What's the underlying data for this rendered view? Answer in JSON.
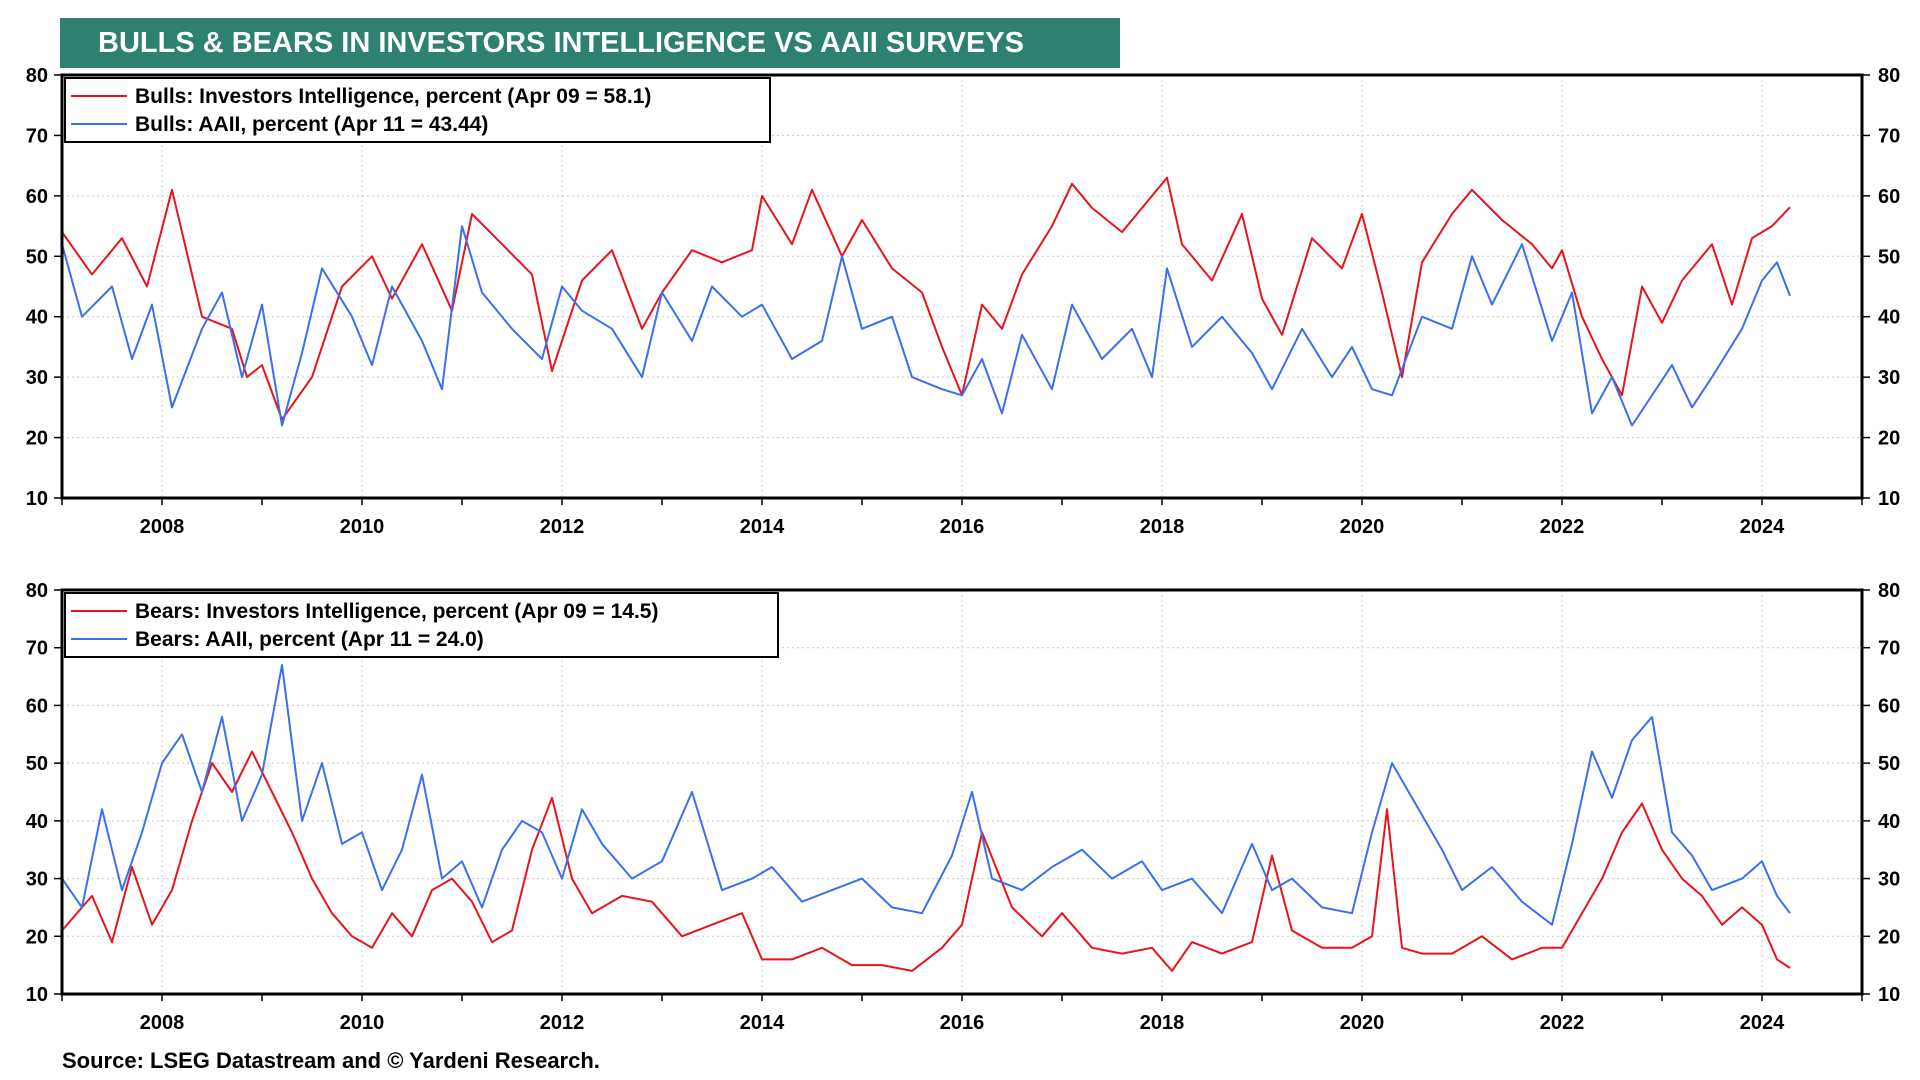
{
  "title": "BULLS & BEARS IN INVESTORS INTELLIGENCE VS AAII SURVEYS",
  "source": "Source: LSEG Datastream and © Yardeni Research.",
  "colors": {
    "banner": "#2e8070",
    "ii": "#e8141c",
    "aaii": "#3a6ff0"
  },
  "chart_data": [
    {
      "type": "line",
      "ylim": [
        10,
        80
      ],
      "yticks": [
        10,
        20,
        30,
        40,
        50,
        60,
        70,
        80
      ],
      "xlim": [
        2007.0,
        2025.0
      ],
      "xticks": [
        "2008",
        "2010",
        "2012",
        "2014",
        "2016",
        "2018",
        "2020",
        "2022",
        "2024"
      ],
      "grid": true,
      "legend_position": "top-left",
      "series": [
        {
          "name": "Bulls: Investors Intelligence, percent (Apr 09 = 58.1)",
          "color": "#e8141c",
          "x": [
            2007.0,
            2007.3,
            2007.6,
            2007.85,
            2008.1,
            2008.4,
            2008.7,
            2008.85,
            2009.0,
            2009.2,
            2009.5,
            2009.8,
            2010.1,
            2010.3,
            2010.6,
            2010.9,
            2011.1,
            2011.4,
            2011.7,
            2011.9,
            2012.2,
            2012.5,
            2012.8,
            2013.0,
            2013.3,
            2013.6,
            2013.9,
            2014.0,
            2014.3,
            2014.5,
            2014.8,
            2015.0,
            2015.3,
            2015.6,
            2015.8,
            2016.0,
            2016.2,
            2016.4,
            2016.6,
            2016.9,
            2017.1,
            2017.3,
            2017.6,
            2017.9,
            2018.05,
            2018.2,
            2018.5,
            2018.8,
            2019.0,
            2019.2,
            2019.5,
            2019.8,
            2020.0,
            2020.2,
            2020.4,
            2020.6,
            2020.9,
            2021.1,
            2021.4,
            2021.7,
            2021.9,
            2022.0,
            2022.2,
            2022.4,
            2022.6,
            2022.8,
            2023.0,
            2023.2,
            2023.5,
            2023.7,
            2023.9,
            2024.1,
            2024.28
          ],
          "y": [
            54,
            47,
            53,
            45,
            61,
            40,
            38,
            30,
            32,
            23,
            30,
            45,
            50,
            43,
            52,
            41,
            57,
            52,
            47,
            31,
            46,
            51,
            38,
            44,
            51,
            49,
            51,
            60,
            52,
            61,
            50,
            56,
            48,
            44,
            35,
            27,
            42,
            38,
            47,
            55,
            62,
            58,
            54,
            60,
            63,
            52,
            46,
            57,
            43,
            37,
            53,
            48,
            57,
            44,
            30,
            49,
            57,
            61,
            56,
            52,
            48,
            51,
            40,
            33,
            27,
            45,
            39,
            46,
            52,
            42,
            53,
            55,
            58.1
          ]
        },
        {
          "name": "Bulls: AAII, percent (Apr 11 = 43.44)",
          "color": "#3a6ff0",
          "x": [
            2007.0,
            2007.2,
            2007.5,
            2007.7,
            2007.9,
            2008.1,
            2008.4,
            2008.6,
            2008.8,
            2009.0,
            2009.2,
            2009.4,
            2009.6,
            2009.9,
            2010.1,
            2010.3,
            2010.6,
            2010.8,
            2011.0,
            2011.2,
            2011.5,
            2011.8,
            2012.0,
            2012.2,
            2012.5,
            2012.8,
            2013.0,
            2013.3,
            2013.5,
            2013.8,
            2014.0,
            2014.3,
            2014.6,
            2014.8,
            2015.0,
            2015.3,
            2015.5,
            2015.8,
            2016.0,
            2016.2,
            2016.4,
            2016.6,
            2016.9,
            2017.1,
            2017.4,
            2017.7,
            2017.9,
            2018.05,
            2018.3,
            2018.6,
            2018.9,
            2019.1,
            2019.4,
            2019.7,
            2019.9,
            2020.1,
            2020.3,
            2020.6,
            2020.9,
            2021.1,
            2021.3,
            2021.6,
            2021.9,
            2022.1,
            2022.3,
            2022.5,
            2022.7,
            2022.9,
            2023.1,
            2023.3,
            2023.5,
            2023.8,
            2024.0,
            2024.15,
            2024.28
          ],
          "y": [
            52,
            40,
            45,
            33,
            42,
            25,
            38,
            44,
            30,
            42,
            22,
            34,
            48,
            40,
            32,
            45,
            36,
            28,
            55,
            44,
            38,
            33,
            45,
            41,
            38,
            30,
            44,
            36,
            45,
            40,
            42,
            33,
            36,
            50,
            38,
            40,
            30,
            28,
            27,
            33,
            24,
            37,
            28,
            42,
            33,
            38,
            30,
            48,
            35,
            40,
            34,
            28,
            38,
            30,
            35,
            28,
            27,
            40,
            38,
            50,
            42,
            52,
            36,
            44,
            24,
            30,
            22,
            27,
            32,
            25,
            30,
            38,
            46,
            49,
            43.44
          ]
        }
      ]
    },
    {
      "type": "line",
      "ylim": [
        10,
        80
      ],
      "yticks": [
        10,
        20,
        30,
        40,
        50,
        60,
        70,
        80
      ],
      "xlim": [
        2007.0,
        2025.0
      ],
      "xticks": [
        "2008",
        "2010",
        "2012",
        "2014",
        "2016",
        "2018",
        "2020",
        "2022",
        "2024"
      ],
      "grid": true,
      "legend_position": "top-left",
      "series": [
        {
          "name": "Bears: Investors Intelligence, percent (Apr 09 = 14.5)",
          "color": "#e8141c",
          "x": [
            2007.0,
            2007.3,
            2007.5,
            2007.7,
            2007.9,
            2008.1,
            2008.3,
            2008.5,
            2008.7,
            2008.9,
            2009.1,
            2009.3,
            2009.5,
            2009.7,
            2009.9,
            2010.1,
            2010.3,
            2010.5,
            2010.7,
            2010.9,
            2011.1,
            2011.3,
            2011.5,
            2011.7,
            2011.9,
            2012.1,
            2012.3,
            2012.6,
            2012.9,
            2013.2,
            2013.5,
            2013.8,
            2014.0,
            2014.3,
            2014.6,
            2014.9,
            2015.2,
            2015.5,
            2015.8,
            2016.0,
            2016.2,
            2016.5,
            2016.8,
            2017.0,
            2017.3,
            2017.6,
            2017.9,
            2018.1,
            2018.3,
            2018.6,
            2018.9,
            2019.1,
            2019.3,
            2019.6,
            2019.9,
            2020.1,
            2020.25,
            2020.4,
            2020.6,
            2020.9,
            2021.2,
            2021.5,
            2021.8,
            2022.0,
            2022.2,
            2022.4,
            2022.6,
            2022.8,
            2023.0,
            2023.2,
            2023.4,
            2023.6,
            2023.8,
            2024.0,
            2024.15,
            2024.28
          ],
          "y": [
            21,
            27,
            19,
            32,
            22,
            28,
            40,
            50,
            45,
            52,
            45,
            38,
            30,
            24,
            20,
            18,
            24,
            20,
            28,
            30,
            26,
            19,
            21,
            35,
            44,
            30,
            24,
            27,
            26,
            20,
            22,
            24,
            16,
            16,
            18,
            15,
            15,
            14,
            18,
            22,
            38,
            25,
            20,
            24,
            18,
            17,
            18,
            14,
            19,
            17,
            19,
            34,
            21,
            18,
            18,
            20,
            42,
            18,
            17,
            17,
            20,
            16,
            18,
            18,
            24,
            30,
            38,
            43,
            35,
            30,
            27,
            22,
            25,
            22,
            16,
            14.5
          ]
        },
        {
          "name": "Bears: AAII, percent (Apr 11 = 24.0)",
          "color": "#3a6ff0",
          "x": [
            2007.0,
            2007.2,
            2007.4,
            2007.6,
            2007.8,
            2008.0,
            2008.2,
            2008.4,
            2008.6,
            2008.8,
            2009.0,
            2009.2,
            2009.4,
            2009.6,
            2009.8,
            2010.0,
            2010.2,
            2010.4,
            2010.6,
            2010.8,
            2011.0,
            2011.2,
            2011.4,
            2011.6,
            2011.8,
            2012.0,
            2012.2,
            2012.4,
            2012.7,
            2013.0,
            2013.3,
            2013.6,
            2013.9,
            2014.1,
            2014.4,
            2014.7,
            2015.0,
            2015.3,
            2015.6,
            2015.9,
            2016.1,
            2016.3,
            2016.6,
            2016.9,
            2017.2,
            2017.5,
            2017.8,
            2018.0,
            2018.3,
            2018.6,
            2018.9,
            2019.1,
            2019.3,
            2019.6,
            2019.9,
            2020.1,
            2020.3,
            2020.5,
            2020.8,
            2021.0,
            2021.3,
            2021.6,
            2021.9,
            2022.1,
            2022.3,
            2022.5,
            2022.7,
            2022.9,
            2023.1,
            2023.3,
            2023.5,
            2023.8,
            2024.0,
            2024.15,
            2024.28
          ],
          "y": [
            30,
            25,
            42,
            28,
            38,
            50,
            55,
            45,
            58,
            40,
            48,
            67,
            40,
            50,
            36,
            38,
            28,
            35,
            48,
            30,
            33,
            25,
            35,
            40,
            38,
            30,
            42,
            36,
            30,
            33,
            45,
            28,
            30,
            32,
            26,
            28,
            30,
            25,
            24,
            34,
            45,
            30,
            28,
            32,
            35,
            30,
            33,
            28,
            30,
            24,
            36,
            28,
            30,
            25,
            24,
            38,
            50,
            44,
            35,
            28,
            32,
            26,
            22,
            36,
            52,
            44,
            54,
            58,
            38,
            34,
            28,
            30,
            33,
            27,
            24.0
          ]
        }
      ]
    }
  ],
  "charts_labels": [
    {
      "tick_labels_y": [
        "80",
        "70",
        "60",
        "50",
        "40",
        "30",
        "20",
        "10"
      ]
    },
    {
      "tick_labels_y": [
        "80",
        "70",
        "60",
        "50",
        "40",
        "30",
        "20",
        "10"
      ]
    }
  ]
}
